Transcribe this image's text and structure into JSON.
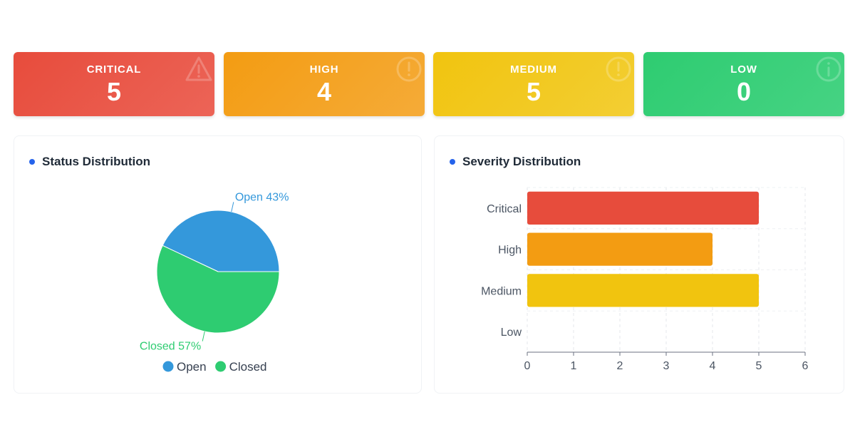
{
  "summary_cards": [
    {
      "id": "critical",
      "label": "CRITICAL",
      "count": "5",
      "icon": "warning-triangle-icon"
    },
    {
      "id": "high",
      "label": "HIGH",
      "count": "4",
      "icon": "exclamation-circle-icon"
    },
    {
      "id": "medium",
      "label": "MEDIUM",
      "count": "5",
      "icon": "exclamation-circle-icon"
    },
    {
      "id": "low",
      "label": "LOW",
      "count": "0",
      "icon": "info-circle-icon"
    }
  ],
  "colors": {
    "critical": "#e74c3c",
    "high": "#f39c12",
    "medium": "#f1c40f",
    "low": "#2ecc71",
    "open": "#3498db",
    "closed": "#2ecc71",
    "title_dot": "#2563eb"
  },
  "status_panel": {
    "title": "Status Distribution"
  },
  "severity_panel": {
    "title": "Severity Distribution"
  },
  "chart_data": [
    {
      "type": "pie",
      "slices": [
        {
          "name": "Open",
          "value": 43,
          "label": "Open 43%",
          "color": "#3498db"
        },
        {
          "name": "Closed",
          "value": 57,
          "label": "Closed 57%",
          "color": "#2ecc71"
        }
      ],
      "legend": [
        "Open",
        "Closed"
      ],
      "legend_placement": "bottom"
    },
    {
      "type": "bar",
      "orientation": "horizontal",
      "categories": [
        "Critical",
        "High",
        "Medium",
        "Low"
      ],
      "values": [
        5,
        4,
        5,
        0
      ],
      "colors": [
        "#e74c3c",
        "#f39c12",
        "#f1c40f",
        "#2ecc71"
      ],
      "xlim": [
        0,
        6
      ],
      "xticks": [
        "0",
        "1",
        "2",
        "3",
        "4",
        "5",
        "6"
      ],
      "grid": true
    }
  ]
}
